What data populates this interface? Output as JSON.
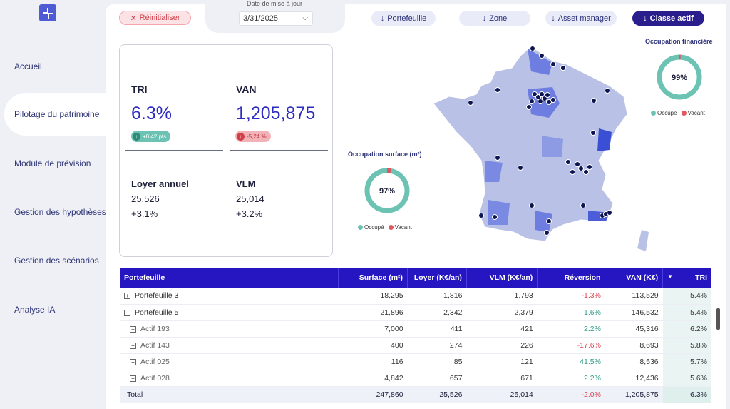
{
  "sidebar": {
    "items": [
      {
        "label": "Accueil"
      },
      {
        "label": "Pilotage du patrimoine"
      },
      {
        "label": "Module de prévision"
      },
      {
        "label": "Gestion des hypothèses"
      },
      {
        "label": "Gestion des scénarios"
      },
      {
        "label": "Analyse IA"
      }
    ],
    "active_index": 1
  },
  "toolbar": {
    "reset_label": "Réinitialiser",
    "date_label": "Date de mise à jour",
    "date_value": "3/31/2025",
    "filters": [
      "Portefeuille",
      "Zone",
      "Asset manager",
      "Classe actif"
    ]
  },
  "kpis": {
    "tri": {
      "title": "TRI",
      "value": "6.3%",
      "delta": "+0,42 pts"
    },
    "van": {
      "title": "VAN",
      "value": "1,205,875",
      "delta": "-5,24 %"
    },
    "loyer": {
      "title": "Loyer annuel",
      "value": "25,526",
      "delta": "+3.1%"
    },
    "vlm": {
      "title": "VLM",
      "value": "25,014",
      "delta": "+3.2%"
    }
  },
  "donuts": {
    "surface": {
      "title": "Occupation surface (m²)",
      "value": "97%",
      "occupied_pct": 97,
      "legend": [
        "Occupé",
        "Vacant"
      ]
    },
    "financiere": {
      "title": "Occupation financière",
      "value": "99%",
      "occupied_pct": 99,
      "legend": [
        "Occupé",
        "Vacant"
      ]
    }
  },
  "colors": {
    "accent": "#2516c1",
    "occupied": "#6cc3b3",
    "vacant": "#e0575f"
  },
  "table": {
    "headers": [
      "Portefeuille",
      "Surface (m²)",
      "Loyer (K€/an)",
      "VLM (K€/an)",
      "Réversion",
      "VAN (K€)",
      "TRI"
    ],
    "rows": [
      {
        "name": "Portefeuille 3",
        "level": 0,
        "expander": "+",
        "cells": [
          "18,295",
          "1,816",
          "1,793",
          "-1.3%",
          "113,529",
          "5.4%"
        ]
      },
      {
        "name": "Portefeuille 5",
        "level": 0,
        "expander": "−",
        "cells": [
          "21,896",
          "2,342",
          "2,379",
          "1.6%",
          "146,532",
          "5.4%"
        ]
      },
      {
        "name": "Actif 193",
        "level": 1,
        "expander": "+",
        "cells": [
          "7,000",
          "411",
          "421",
          "2.2%",
          "45,316",
          "6.2%"
        ]
      },
      {
        "name": "Actif 143",
        "level": 1,
        "expander": "+",
        "cells": [
          "400",
          "274",
          "226",
          "-17.6%",
          "8,693",
          "5.8%"
        ]
      },
      {
        "name": "Actif 025",
        "level": 1,
        "expander": "+",
        "cells": [
          "116",
          "85",
          "121",
          "41.5%",
          "8,536",
          "5.7%"
        ]
      },
      {
        "name": "Actif 028",
        "level": 1,
        "expander": "+",
        "cells": [
          "4,842",
          "657",
          "671",
          "2.2%",
          "12,436",
          "5.6%"
        ]
      }
    ],
    "total": {
      "name": "Total",
      "cells": [
        "247,860",
        "25,526",
        "25,014",
        "-2.0%",
        "1,205,875",
        "6.3%"
      ]
    }
  }
}
